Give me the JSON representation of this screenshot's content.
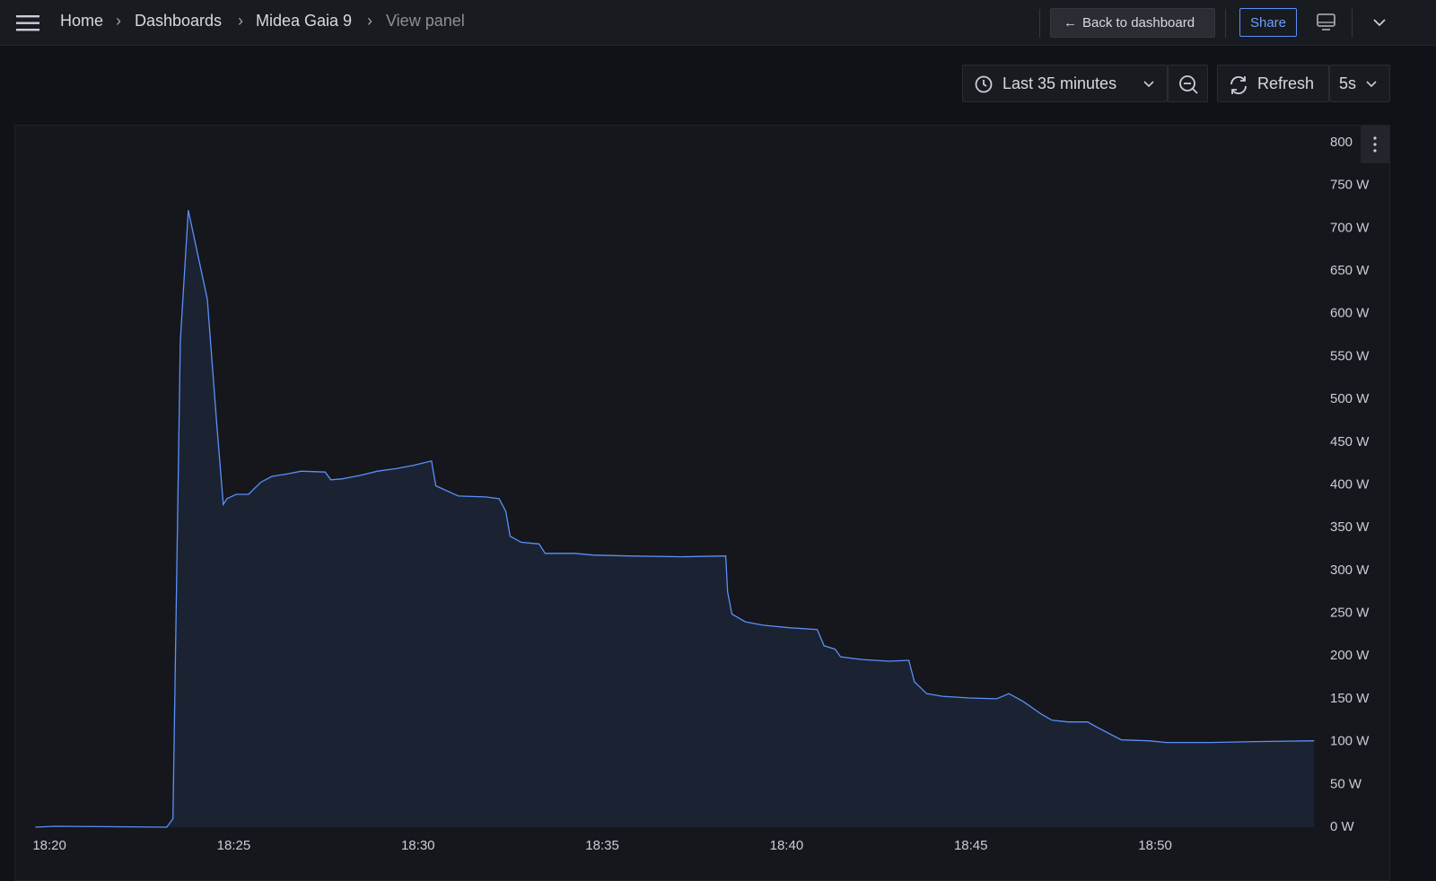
{
  "header": {
    "breadcrumbs": [
      "Home",
      "Dashboards",
      "Midea Gaia 9",
      "View panel"
    ],
    "back_button": "Back to dashboard",
    "share_button": "Share"
  },
  "toolbar": {
    "time_range": "Last 35 minutes",
    "refresh_button": "Refresh",
    "refresh_interval": "5s"
  },
  "chart_data": {
    "type": "line",
    "color": "#5b8ff9",
    "grid": false,
    "x": [
      "18:19:37",
      "18:20:09",
      "18:23:11",
      "18:23:21",
      "18:23:33",
      "18:23:46",
      "18:24:17",
      "18:24:26",
      "18:24:32",
      "18:24:43",
      "18:24:49",
      "18:25:04",
      "18:25:24",
      "18:25:44",
      "18:26:02",
      "18:26:28",
      "18:26:50",
      "18:27:29",
      "18:27:38",
      "18:27:56",
      "18:28:25",
      "18:28:54",
      "18:29:24",
      "18:29:53",
      "18:30:22",
      "18:30:29",
      "18:31:06",
      "18:31:50",
      "18:32:12",
      "18:32:23",
      "18:32:30",
      "18:32:48",
      "18:33:17",
      "18:33:27",
      "18:34:15",
      "18:34:45",
      "18:35:43",
      "18:37:11",
      "18:38:21",
      "18:38:24",
      "18:38:31",
      "18:38:53",
      "18:39:22",
      "18:40:06",
      "18:40:50",
      "18:41:01",
      "18:41:19",
      "18:41:28",
      "18:42:03",
      "18:42:47",
      "18:43:19",
      "18:43:28",
      "18:43:48",
      "18:44:14",
      "18:44:58",
      "18:45:42",
      "18:46:02",
      "18:46:25",
      "18:46:55",
      "18:47:12",
      "18:47:38",
      "18:48:10",
      "18:48:25",
      "18:49:05",
      "18:49:49",
      "18:50:18",
      "18:51:31",
      "18:52:44",
      "18:54:19"
    ],
    "values": [
      0,
      1,
      0,
      10,
      568,
      721,
      617,
      531,
      474,
      377,
      384,
      389,
      389,
      403,
      410,
      413,
      416,
      415,
      406,
      407,
      411,
      416,
      419,
      423,
      428,
      399,
      387,
      386,
      384,
      369,
      340,
      333,
      331,
      320,
      320,
      318,
      317,
      316,
      317,
      275,
      249,
      240,
      236,
      233,
      231,
      212,
      208,
      199,
      196,
      194,
      195,
      170,
      156,
      153,
      151,
      150,
      156,
      147,
      132,
      125,
      123,
      123,
      117,
      102,
      101,
      99,
      99,
      100,
      101
    ],
    "xlim": [
      "18:19:35",
      "18:54:20"
    ],
    "xticks": [
      "18:20",
      "18:25",
      "18:30",
      "18:35",
      "18:40",
      "18:45",
      "18:50"
    ],
    "ylim": [
      0,
      800
    ],
    "yticks": [
      {
        "value": 0,
        "label": "0 W"
      },
      {
        "value": 50,
        "label": "50 W"
      },
      {
        "value": 100,
        "label": "100 W"
      },
      {
        "value": 150,
        "label": "150 W"
      },
      {
        "value": 200,
        "label": "200 W"
      },
      {
        "value": 250,
        "label": "250 W"
      },
      {
        "value": 300,
        "label": "300 W"
      },
      {
        "value": 350,
        "label": "350 W"
      },
      {
        "value": 400,
        "label": "400 W"
      },
      {
        "value": 450,
        "label": "450 W"
      },
      {
        "value": 500,
        "label": "500 W"
      },
      {
        "value": 550,
        "label": "550 W"
      },
      {
        "value": 600,
        "label": "600 W"
      },
      {
        "value": 650,
        "label": "650 W"
      },
      {
        "value": 700,
        "label": "700 W"
      },
      {
        "value": 750,
        "label": "750 W"
      },
      800
    ]
  }
}
